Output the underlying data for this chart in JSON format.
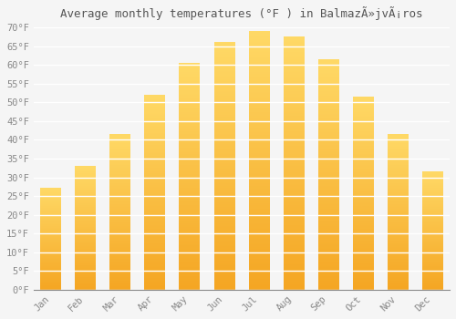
{
  "title": "Average monthly temperatures (°F ) in BalmazÃ»jvÃ¡ros",
  "months": [
    "Jan",
    "Feb",
    "Mar",
    "Apr",
    "May",
    "Jun",
    "Jul",
    "Aug",
    "Sep",
    "Oct",
    "Nov",
    "Dec"
  ],
  "values": [
    27.0,
    33.0,
    41.5,
    52.0,
    60.5,
    66.0,
    69.0,
    67.5,
    61.5,
    51.5,
    41.5,
    31.5
  ],
  "bar_color_bottom": "#F5A623",
  "bar_color_top": "#FFD966",
  "background_color": "#F5F5F5",
  "grid_color": "#FFFFFF",
  "ylim": [
    0,
    70
  ],
  "ytick_step": 5,
  "tick_label_color": "#888888",
  "title_color": "#555555",
  "title_fontsize": 9,
  "tick_fontsize": 7.5
}
